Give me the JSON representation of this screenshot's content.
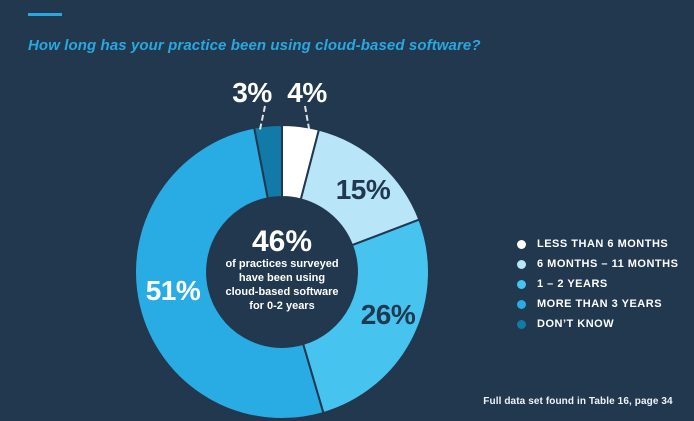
{
  "page": {
    "background_color": "#21384f",
    "accent_color": "#29a8e0"
  },
  "header": {
    "title": "How long has your practice been using cloud-based software?"
  },
  "chart_data": {
    "type": "donut",
    "title": "How long has your practice been using cloud-based software?",
    "categories": [
      "Less than 6 months",
      "6 months – 11 months",
      "1 – 2 years",
      "More than 3 years",
      "Don’t know"
    ],
    "values": [
      4,
      15,
      26,
      51,
      3
    ],
    "value_labels": [
      "4%",
      "15%",
      "26%",
      "51%",
      "3%"
    ],
    "colors": [
      "#ffffff",
      "#b9e5f8",
      "#47c3ef",
      "#29ace3",
      "#117aa6"
    ],
    "start_angle_deg": 0,
    "direction": "clockwise",
    "inner_radius_ratio": 0.51,
    "legend_position": "right",
    "center_callout": {
      "stat": "46%",
      "note": "of practices surveyed have been using cloud-based software for 0-2 years"
    }
  },
  "legend": {
    "items": [
      {
        "label": "LESS THAN 6 MONTHS",
        "color": "#ffffff"
      },
      {
        "label": "6 MONTHS – 11 MONTHS",
        "color": "#b9e5f8"
      },
      {
        "label": "1 – 2 YEARS",
        "color": "#47c3ef"
      },
      {
        "label": "MORE THAN 3 YEARS",
        "color": "#29ace3"
      },
      {
        "label": "DON’T KNOW",
        "color": "#117aa6"
      }
    ]
  },
  "footer": {
    "note": "Full data set found in Table 16, page 34"
  }
}
